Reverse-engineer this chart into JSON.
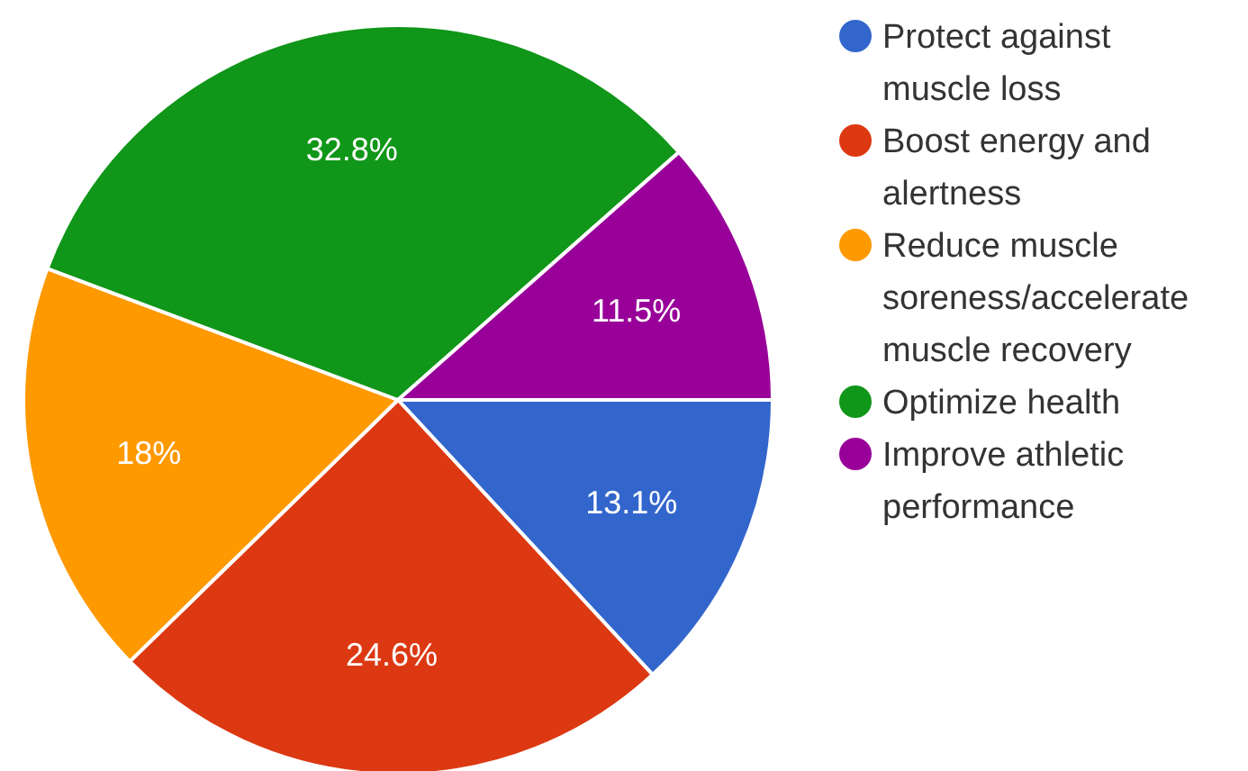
{
  "chart_data": {
    "type": "pie",
    "categories": [
      "Protect against muscle loss",
      "Boost energy and alertness",
      "Reduce muscle soreness/accelerate muscle recovery",
      "Optimize health",
      "Improve athletic performance"
    ],
    "values": [
      13.1,
      24.6,
      18,
      32.8,
      11.5
    ],
    "value_labels": [
      "13.1%",
      "24.6%",
      "18%",
      "32.8%",
      "11.5%"
    ],
    "colors": [
      "#3366cc",
      "#dc3912",
      "#ff9900",
      "#109618",
      "#990099"
    ],
    "legend": "right"
  }
}
